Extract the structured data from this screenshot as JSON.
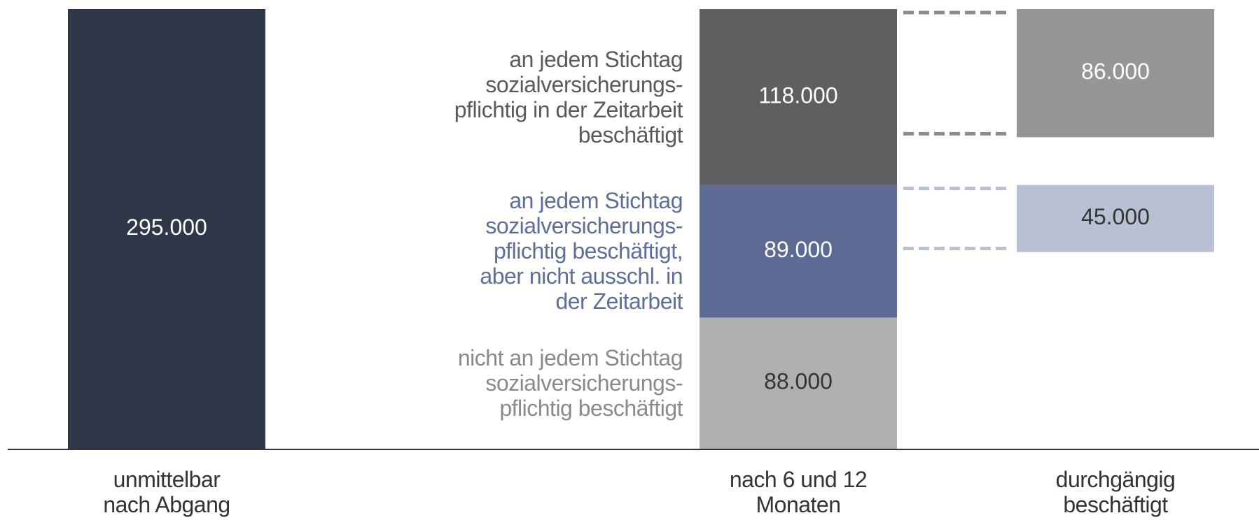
{
  "chart_data": {
    "type": "stacked-bar",
    "categories": [
      "unmittelbar\nnach Abgang",
      "nach 6 und 12\nMonaten",
      "durchgängig\nbeschäftigt"
    ],
    "series": [
      {
        "colors": [
          "#2f3849",
          null,
          null
        ],
        "values": [
          295000,
          null,
          null
        ],
        "value_labels": [
          "295.000",
          null,
          null
        ]
      },
      {
        "name": "nicht an jedem Stichtag\nsozialversicherungs-\npflichtig beschäftigt",
        "name_color": "#8a8a8a",
        "colors": [
          null,
          "#b0b0b0",
          null
        ],
        "values": [
          null,
          88000,
          null
        ],
        "value_labels": [
          null,
          "88.000",
          null
        ]
      },
      {
        "name": "an jedem Stichtag\nsozialversicherungs-\npflichtig beschäftigt,\naber nicht ausschl. in\nder Zeitarbeit",
        "name_color": "#5d6e99",
        "colors": [
          null,
          "#5d6b94",
          "#b8c0d4"
        ],
        "values": [
          null,
          89000,
          45000
        ],
        "value_labels": [
          null,
          "89.000",
          "45.000"
        ]
      },
      {
        "name": "an jedem Stichtag\nsozialversicherungs-\npflichtig in der Zeitarbeit\nbeschäftigt",
        "name_color": "#5a5a5a",
        "colors": [
          null,
          "#5f5f5f",
          "#969696"
        ],
        "values": [
          null,
          118000,
          86000
        ],
        "value_labels": [
          null,
          "118.000",
          "86.000"
        ]
      }
    ]
  }
}
